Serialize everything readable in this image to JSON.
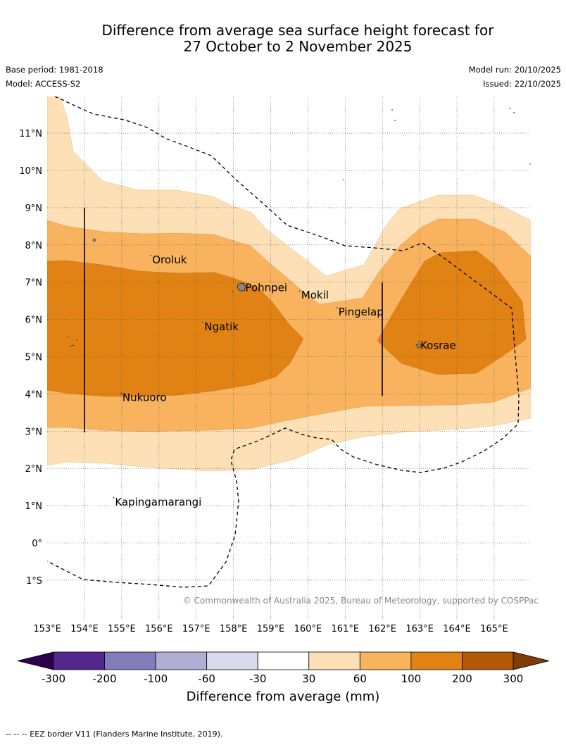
{
  "title": {
    "line1": "Difference from average sea surface height forecast for",
    "line2": "27 October to 2 November 2025"
  },
  "meta": {
    "base_period": "Base period: 1981-2018",
    "model": "Model: ACCESS-S2",
    "model_run": "Model run: 20/10/2025",
    "issued": "Issued: 22/10/2025"
  },
  "map": {
    "lat_labels": [
      "11°N",
      "10°N",
      "9°N",
      "8°N",
      "7°N",
      "6°N",
      "5°N",
      "4°N",
      "3°N",
      "2°N",
      "1°N",
      "0°",
      "1°S"
    ],
    "lon_labels": [
      "153°E",
      "154°E",
      "155°E",
      "156°E",
      "157°E",
      "158°E",
      "159°E",
      "160°E",
      "161°E",
      "162°E",
      "163°E",
      "164°E",
      "165°E"
    ],
    "places": [
      {
        "name": "Oroluk",
        "lon": 155.8,
        "lat": 7.6
      },
      {
        "name": "Pohnpei",
        "lon": 158.3,
        "lat": 6.85
      },
      {
        "name": "Mokil",
        "lon": 159.8,
        "lat": 6.65
      },
      {
        "name": "Ngatik",
        "lon": 157.2,
        "lat": 5.8
      },
      {
        "name": "Pingelap",
        "lon": 160.8,
        "lat": 6.2
      },
      {
        "name": "Kosrae",
        "lon": 163.0,
        "lat": 5.3
      },
      {
        "name": "Nukuoro",
        "lon": 155.0,
        "lat": 3.9
      },
      {
        "name": "Kapingamarangi",
        "lon": 154.8,
        "lat": 1.1
      }
    ],
    "copyright": "© Commonwealth of Australia 2025, Bureau of Meteorology, supported by COSPPac"
  },
  "colorbar": {
    "ticks": [
      "-300",
      "-200",
      "-100",
      "-60",
      "-30",
      "30",
      "60",
      "100",
      "200",
      "300"
    ],
    "colors": [
      "#54278f",
      "#807dba",
      "#b1aed4",
      "#dadaeb",
      "#ffffff",
      "#fee0b6",
      "#f9b25e",
      "#e08214",
      "#b35806"
    ],
    "under_color": "#2d004b",
    "over_color": "#7f3b08",
    "label": "Difference from average (mm)"
  },
  "footnote": "--  --  -- EEZ border V11 (Flanders Marine Institute, 2019)."
}
